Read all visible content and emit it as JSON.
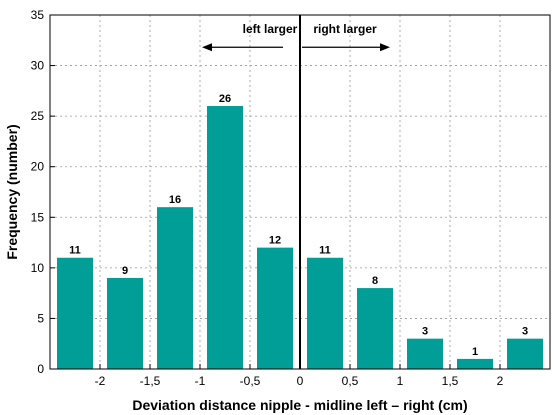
{
  "chart_data": {
    "type": "bar",
    "xlabel": "Deviation distance nipple - midline left  – right (cm)",
    "ylabel": "Frequency (number)",
    "ylim": [
      0,
      35
    ],
    "yticks": [
      0,
      5,
      10,
      15,
      20,
      25,
      30,
      35
    ],
    "xlim": [
      -2.5,
      2.5
    ],
    "xticks": [
      {
        "value": -2,
        "label": "-2"
      },
      {
        "value": -1.5,
        "label": "-1,5"
      },
      {
        "value": -1,
        "label": "-1"
      },
      {
        "value": -0.5,
        "label": "-0,5"
      },
      {
        "value": 0,
        "label": "0"
      },
      {
        "value": 0.5,
        "label": "0,5"
      },
      {
        "value": 1,
        "label": "1"
      },
      {
        "value": 1.5,
        "label": "1,5"
      },
      {
        "value": 2,
        "label": "2"
      }
    ],
    "bin_centers": [
      -2.25,
      -1.75,
      -1.25,
      -0.75,
      -0.25,
      0.25,
      0.75,
      1.25,
      1.75,
      2.25
    ],
    "values": [
      11,
      9,
      16,
      26,
      12,
      11,
      8,
      3,
      1,
      3
    ],
    "bar_color": "#009e96",
    "grid": true,
    "annotations": {
      "left": "left larger",
      "right": "right larger"
    }
  }
}
